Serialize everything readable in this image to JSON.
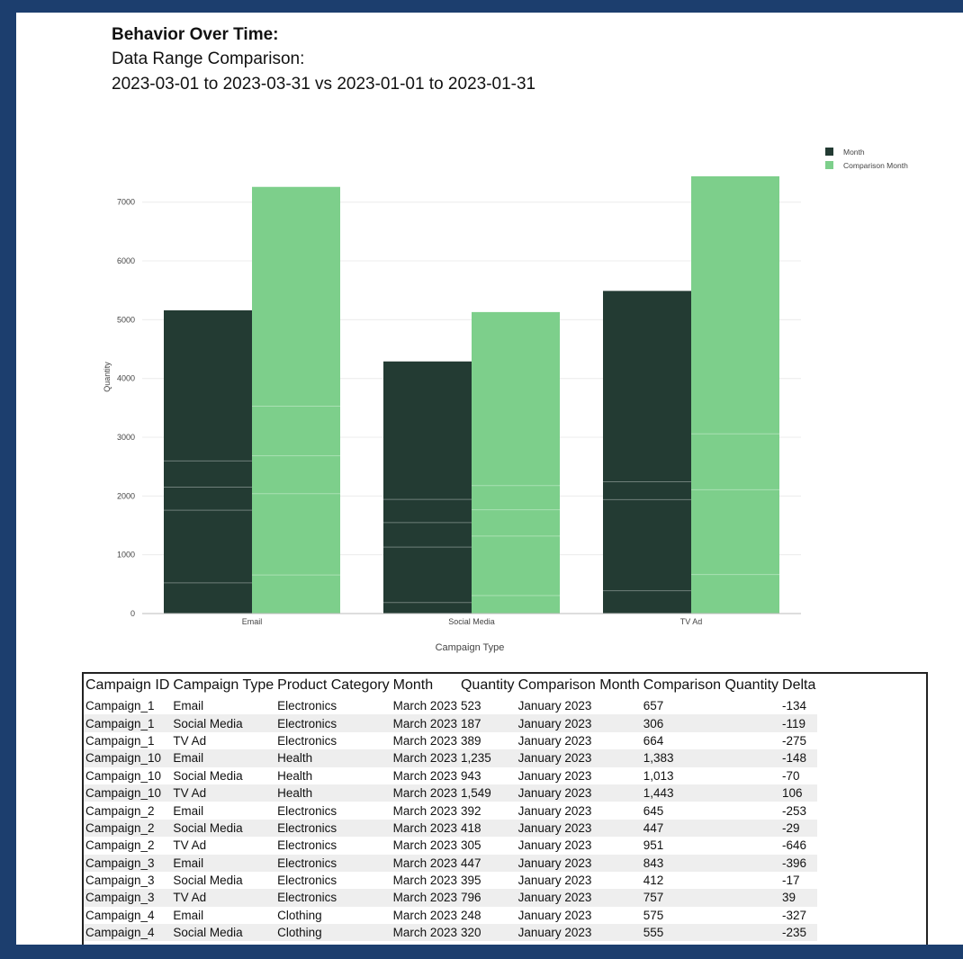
{
  "header": {
    "title": "Behavior Over Time:",
    "subtitle": "Data Range Comparison:",
    "range": "2023-03-01 to 2023-03-31 vs 2023-01-01 to 2023-01-31"
  },
  "colors": {
    "month": "#233b33",
    "comparison": "#7dcf8b",
    "segment_line": "#ffffff"
  },
  "chart_data": {
    "type": "bar",
    "categories": [
      "Email",
      "Social Media",
      "TV Ad"
    ],
    "series": [
      {
        "name": "Month",
        "values": [
          5160,
          4290,
          5490
        ],
        "segments": [
          [
            523,
            1235,
            392,
            447,
            248
          ],
          [
            187,
            943,
            418,
            395,
            320
          ],
          [
            389,
            1549,
            305,
            796
          ]
        ]
      },
      {
        "name": "Comparison Month",
        "values": [
          7260,
          5130,
          7440
        ],
        "segments": [
          [
            657,
            1383,
            645,
            843,
            575
          ],
          [
            306,
            1013,
            447,
            412,
            555
          ],
          [
            664,
            1443,
            951,
            757
          ]
        ]
      }
    ],
    "xlabel": "Campaign Type",
    "ylabel": "Quantity",
    "yticks": [
      0,
      1000,
      2000,
      3000,
      4000,
      5000,
      6000,
      7000
    ],
    "ylim": [
      0,
      7700
    ],
    "grid": true,
    "legend_position": "top-right"
  },
  "table": {
    "columns": [
      "Campaign ID",
      "Campaign Type",
      "Product Category",
      "Month",
      "Quantity",
      "Comparison Month",
      "Comparison Quantity",
      "Delta"
    ],
    "rows": [
      [
        "Campaign_1",
        "Email",
        "Electronics",
        "March 2023",
        "523",
        "January 2023",
        "657",
        "-134"
      ],
      [
        "Campaign_1",
        "Social Media",
        "Electronics",
        "March 2023",
        "187",
        "January 2023",
        "306",
        "-119"
      ],
      [
        "Campaign_1",
        "TV Ad",
        "Electronics",
        "March 2023",
        "389",
        "January 2023",
        "664",
        "-275"
      ],
      [
        "Campaign_10",
        "Email",
        "Health",
        "March 2023",
        "1,235",
        "January 2023",
        "1,383",
        "-148"
      ],
      [
        "Campaign_10",
        "Social Media",
        "Health",
        "March 2023",
        "943",
        "January 2023",
        "1,013",
        "-70"
      ],
      [
        "Campaign_10",
        "TV Ad",
        "Health",
        "March 2023",
        "1,549",
        "January 2023",
        "1,443",
        "106"
      ],
      [
        "Campaign_2",
        "Email",
        "Electronics",
        "March 2023",
        "392",
        "January 2023",
        "645",
        "-253"
      ],
      [
        "Campaign_2",
        "Social Media",
        "Electronics",
        "March 2023",
        "418",
        "January 2023",
        "447",
        "-29"
      ],
      [
        "Campaign_2",
        "TV Ad",
        "Electronics",
        "March 2023",
        "305",
        "January 2023",
        "951",
        "-646"
      ],
      [
        "Campaign_3",
        "Email",
        "Electronics",
        "March 2023",
        "447",
        "January 2023",
        "843",
        "-396"
      ],
      [
        "Campaign_3",
        "Social Media",
        "Electronics",
        "March 2023",
        "395",
        "January 2023",
        "412",
        "-17"
      ],
      [
        "Campaign_3",
        "TV Ad",
        "Electronics",
        "March 2023",
        "796",
        "January 2023",
        "757",
        "39"
      ],
      [
        "Campaign_4",
        "Email",
        "Clothing",
        "March 2023",
        "248",
        "January 2023",
        "575",
        "-327"
      ],
      [
        "Campaign_4",
        "Social Media",
        "Clothing",
        "March 2023",
        "320",
        "January 2023",
        "555",
        "-235"
      ]
    ]
  }
}
